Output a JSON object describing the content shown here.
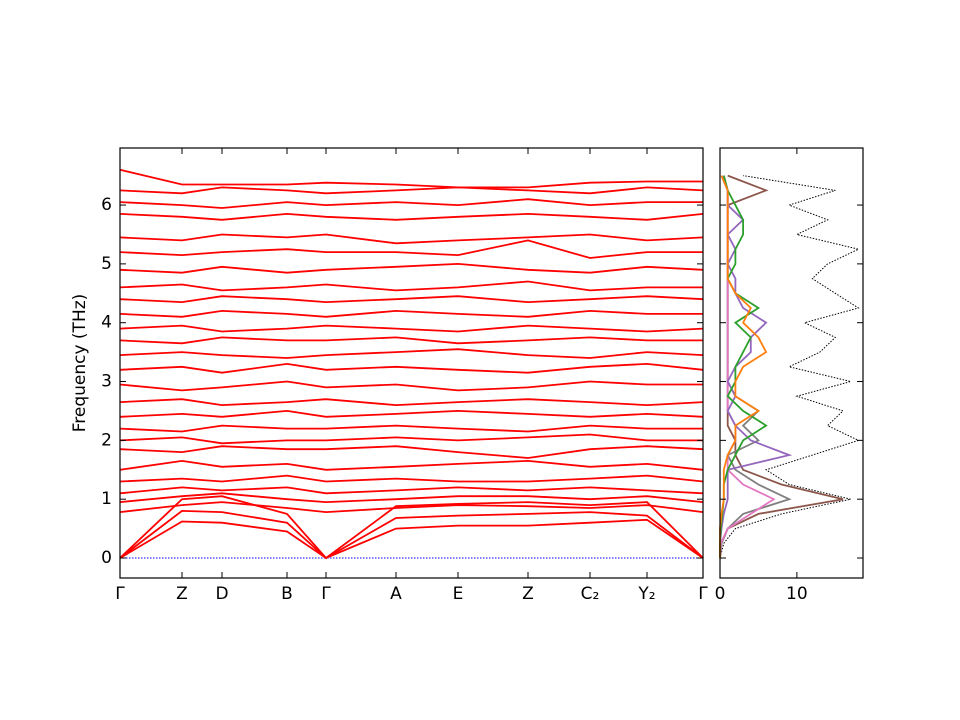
{
  "chart_data": [
    {
      "type": "line",
      "ylabel": "Frequency (THz)",
      "x": [
        0,
        0.62,
        1.02,
        1.67,
        2.06,
        2.76,
        3.38,
        4.08,
        4.7,
        5.27,
        5.83
      ],
      "xlim": [
        0,
        5.83
      ],
      "xticks": [
        {
          "value": 0,
          "label": "Γ"
        },
        {
          "value": 0.62,
          "label": "Z"
        },
        {
          "value": 1.02,
          "label": "D"
        },
        {
          "value": 1.67,
          "label": "B"
        },
        {
          "value": 2.06,
          "label": "Γ"
        },
        {
          "value": 2.76,
          "label": "A"
        },
        {
          "value": 3.38,
          "label": "E"
        },
        {
          "value": 4.08,
          "label": "Z"
        },
        {
          "value": 4.7,
          "label": "C₂"
        },
        {
          "value": 5.27,
          "label": "Y₂"
        },
        {
          "value": 5.83,
          "label": "Γ"
        }
      ],
      "ylim": [
        -0.34,
        6.97
      ],
      "yticks": [
        0,
        1,
        2,
        3,
        4,
        5,
        6
      ],
      "series": [
        {
          "color": "#0000ff",
          "style": "dotted",
          "values": [
            0,
            0,
            0,
            0,
            0,
            0,
            0,
            0,
            0,
            0,
            0
          ]
        },
        {
          "color": "#ff0000",
          "values": [
            0,
            0.62,
            0.6,
            0.45,
            0,
            0.5,
            0.55,
            0.55,
            0.6,
            0.65,
            0
          ]
        },
        {
          "color": "#ff0000",
          "values": [
            0,
            0.8,
            0.78,
            0.6,
            0,
            0.68,
            0.72,
            0.75,
            0.78,
            0.72,
            0
          ]
        },
        {
          "color": "#ff0000",
          "values": [
            0,
            1.0,
            1.05,
            0.75,
            0,
            0.88,
            0.92,
            0.95,
            0.9,
            0.95,
            0
          ]
        },
        {
          "color": "#ff0000",
          "values": [
            0.78,
            0.9,
            0.95,
            0.85,
            0.78,
            0.85,
            0.9,
            0.88,
            0.85,
            0.9,
            0.78
          ]
        },
        {
          "color": "#ff0000",
          "values": [
            0.95,
            1.05,
            1.1,
            1.0,
            0.95,
            1.0,
            1.05,
            1.05,
            1.0,
            1.05,
            0.95
          ]
        },
        {
          "color": "#ff0000",
          "values": [
            1.1,
            1.2,
            1.15,
            1.2,
            1.1,
            1.15,
            1.2,
            1.15,
            1.2,
            1.15,
            1.1
          ]
        },
        {
          "color": "#ff0000",
          "values": [
            1.3,
            1.35,
            1.3,
            1.4,
            1.3,
            1.35,
            1.3,
            1.3,
            1.35,
            1.4,
            1.3
          ]
        },
        {
          "color": "#ff0000",
          "values": [
            1.5,
            1.65,
            1.55,
            1.6,
            1.5,
            1.55,
            1.6,
            1.65,
            1.55,
            1.6,
            1.5
          ]
        },
        {
          "color": "#ff0000",
          "values": [
            1.85,
            1.8,
            1.9,
            1.85,
            1.85,
            1.9,
            1.8,
            1.7,
            1.85,
            1.9,
            1.85
          ]
        },
        {
          "color": "#ff0000",
          "values": [
            2.0,
            2.05,
            1.95,
            2.0,
            2.0,
            2.05,
            2.0,
            2.05,
            2.1,
            2.0,
            2.0
          ]
        },
        {
          "color": "#ff0000",
          "values": [
            2.2,
            2.15,
            2.25,
            2.2,
            2.2,
            2.25,
            2.2,
            2.15,
            2.25,
            2.2,
            2.2
          ]
        },
        {
          "color": "#ff0000",
          "values": [
            2.4,
            2.45,
            2.4,
            2.5,
            2.4,
            2.45,
            2.5,
            2.45,
            2.4,
            2.45,
            2.4
          ]
        },
        {
          "color": "#ff0000",
          "values": [
            2.65,
            2.7,
            2.6,
            2.65,
            2.7,
            2.6,
            2.65,
            2.7,
            2.65,
            2.6,
            2.65
          ]
        },
        {
          "color": "#ff0000",
          "values": [
            2.95,
            2.85,
            2.9,
            3.0,
            2.9,
            2.95,
            2.85,
            2.9,
            3.0,
            2.95,
            2.95
          ]
        },
        {
          "color": "#ff0000",
          "values": [
            3.2,
            3.25,
            3.15,
            3.3,
            3.2,
            3.25,
            3.2,
            3.15,
            3.25,
            3.3,
            3.2
          ]
        },
        {
          "color": "#ff0000",
          "values": [
            3.45,
            3.5,
            3.45,
            3.4,
            3.45,
            3.5,
            3.55,
            3.45,
            3.4,
            3.5,
            3.45
          ]
        },
        {
          "color": "#ff0000",
          "values": [
            3.7,
            3.65,
            3.75,
            3.7,
            3.7,
            3.75,
            3.65,
            3.7,
            3.75,
            3.7,
            3.7
          ]
        },
        {
          "color": "#ff0000",
          "values": [
            3.9,
            3.95,
            3.85,
            3.9,
            3.95,
            3.9,
            3.85,
            3.95,
            3.9,
            3.85,
            3.9
          ]
        },
        {
          "color": "#ff0000",
          "values": [
            4.15,
            4.1,
            4.2,
            4.15,
            4.1,
            4.2,
            4.15,
            4.1,
            4.2,
            4.15,
            4.15
          ]
        },
        {
          "color": "#ff0000",
          "values": [
            4.4,
            4.35,
            4.45,
            4.4,
            4.35,
            4.4,
            4.45,
            4.35,
            4.4,
            4.45,
            4.4
          ]
        },
        {
          "color": "#ff0000",
          "values": [
            4.6,
            4.65,
            4.55,
            4.6,
            4.65,
            4.55,
            4.6,
            4.7,
            4.55,
            4.6,
            4.6
          ]
        },
        {
          "color": "#ff0000",
          "values": [
            4.9,
            4.85,
            4.95,
            4.85,
            4.9,
            4.95,
            5.0,
            4.9,
            4.85,
            4.95,
            4.9
          ]
        },
        {
          "color": "#ff0000",
          "values": [
            5.2,
            5.15,
            5.2,
            5.25,
            5.2,
            5.2,
            5.15,
            5.4,
            5.1,
            5.2,
            5.2
          ]
        },
        {
          "color": "#ff0000",
          "values": [
            5.45,
            5.4,
            5.5,
            5.45,
            5.5,
            5.35,
            5.4,
            5.45,
            5.5,
            5.4,
            5.45
          ]
        },
        {
          "color": "#ff0000",
          "values": [
            5.85,
            5.8,
            5.75,
            5.85,
            5.8,
            5.75,
            5.8,
            5.85,
            5.8,
            5.75,
            5.85
          ]
        },
        {
          "color": "#ff0000",
          "values": [
            6.05,
            6.0,
            5.95,
            6.05,
            6.0,
            6.05,
            6.0,
            6.1,
            6.0,
            6.05,
            6.05
          ]
        },
        {
          "color": "#ff0000",
          "values": [
            6.25,
            6.2,
            6.3,
            6.25,
            6.2,
            6.25,
            6.3,
            6.25,
            6.2,
            6.3,
            6.25
          ]
        },
        {
          "color": "#ff0000",
          "values": [
            6.6,
            6.35,
            6.35,
            6.35,
            6.38,
            6.35,
            6.3,
            6.3,
            6.38,
            6.4,
            6.4
          ]
        }
      ]
    },
    {
      "type": "line",
      "orientation": "horizontal",
      "y": [
        0,
        0.25,
        0.5,
        0.75,
        1.0,
        1.25,
        1.5,
        1.75,
        2.0,
        2.25,
        2.5,
        2.75,
        3.0,
        3.25,
        3.5,
        3.75,
        4.0,
        4.25,
        4.5,
        4.75,
        5.0,
        5.25,
        5.5,
        5.75,
        6.0,
        6.25,
        6.5
      ],
      "xlim": [
        0,
        18.6
      ],
      "xticks": [
        0,
        10
      ],
      "ylim": [
        -0.34,
        6.97
      ],
      "yticks": [
        0,
        1,
        2,
        3,
        4,
        5,
        6
      ],
      "series": [
        {
          "color": "#000000",
          "style": "dotted",
          "values": [
            0,
            0.5,
            2,
            8,
            17,
            9,
            6,
            12,
            18,
            14,
            16,
            10,
            17,
            9,
            13,
            15,
            11,
            18,
            15,
            12,
            14,
            18,
            10,
            14,
            9,
            15,
            3
          ]
        },
        {
          "color": "#8c564b",
          "values": [
            0,
            0.2,
            1,
            5,
            16,
            8,
            3,
            2,
            2,
            1,
            1,
            1,
            1,
            1,
            1,
            1,
            1,
            1,
            1,
            1,
            1,
            1,
            1,
            1,
            1,
            6,
            1
          ]
        },
        {
          "color": "#7f7f7f",
          "values": [
            0,
            0.2,
            1,
            3,
            9,
            5,
            2,
            1,
            5,
            3,
            5,
            2,
            1,
            1,
            1,
            1,
            1,
            1,
            1,
            1,
            1,
            1,
            1,
            1,
            1,
            1,
            0.5
          ]
        },
        {
          "color": "#e377c2",
          "values": [
            0,
            0.1,
            1,
            4,
            7,
            3,
            1,
            1,
            2,
            2,
            1,
            1,
            1,
            1,
            1,
            1,
            1,
            1,
            1,
            1,
            1,
            1,
            1,
            1,
            1,
            1,
            0.5
          ]
        },
        {
          "color": "#9467bd",
          "values": [
            0,
            0,
            0.2,
            0.5,
            1,
            1,
            1,
            9,
            4,
            2,
            1,
            2,
            1,
            2,
            4,
            4,
            6,
            3,
            2,
            2,
            1,
            2,
            1,
            3,
            1,
            1,
            0.2
          ]
        },
        {
          "color": "#2ca02c",
          "values": [
            0,
            0,
            0.1,
            0.3,
            0.5,
            0.5,
            1,
            2,
            3,
            6,
            3,
            1,
            2,
            2,
            3,
            4,
            2,
            5,
            2,
            1,
            2,
            2,
            3,
            3,
            2,
            1,
            0.5
          ]
        },
        {
          "color": "#ff7f0e",
          "values": [
            0,
            0,
            0,
            0.2,
            0.5,
            0.5,
            0.5,
            1,
            2,
            2,
            5,
            2,
            2,
            3,
            6,
            5,
            3,
            4,
            2,
            1,
            1,
            1,
            1,
            1,
            1,
            1,
            0.2
          ]
        }
      ]
    }
  ]
}
